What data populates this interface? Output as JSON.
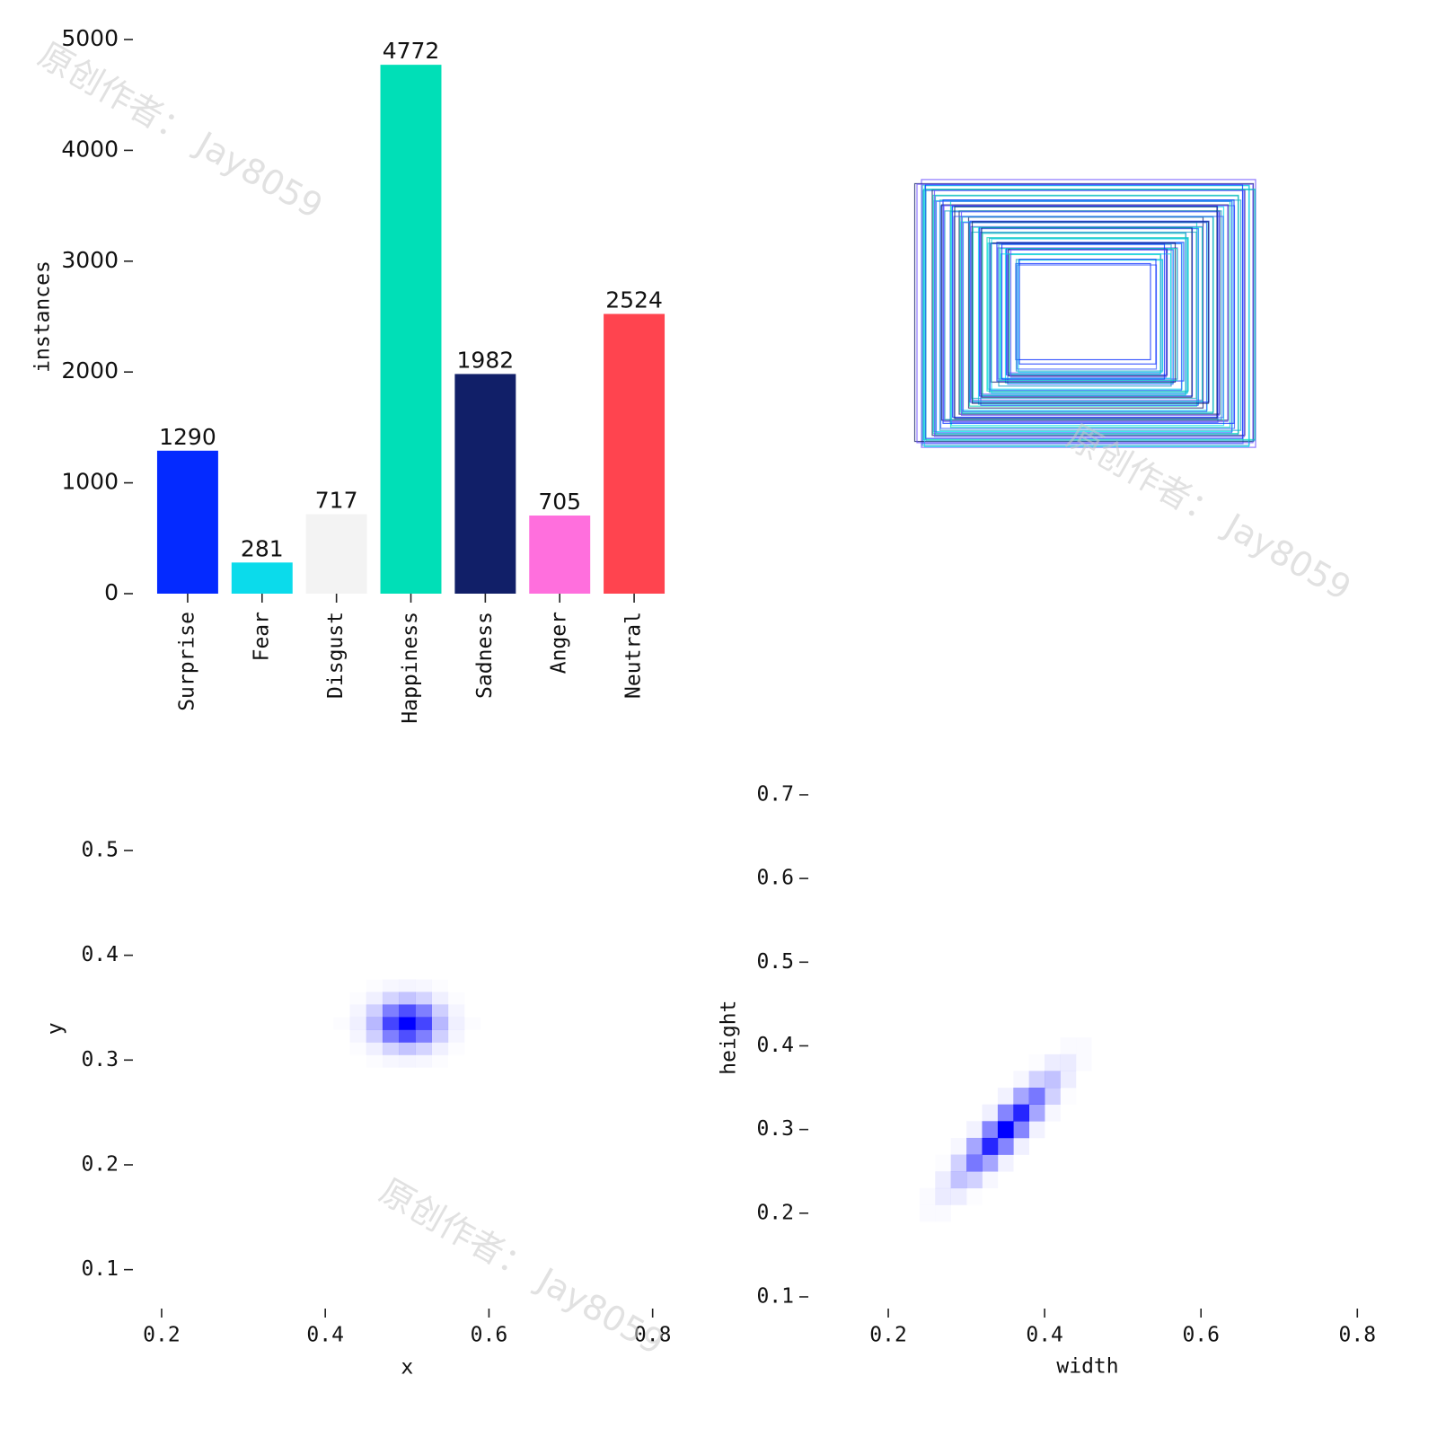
{
  "watermark": "原创作者： Jay8059",
  "chart_data": [
    {
      "type": "bar",
      "ylabel": "instances",
      "categories": [
        "Surprise",
        "Fear",
        "Disgust",
        "Happiness",
        "Sadness",
        "Anger",
        "Neutral"
      ],
      "values": [
        1290,
        281,
        717,
        4772,
        1982,
        705,
        2524
      ],
      "colors": [
        "#042aff",
        "#0bdbeb",
        "#f3f3f3",
        "#00dfb7",
        "#111f68",
        "#ff6fdd",
        "#ff444f"
      ],
      "ylim": [
        0,
        5000
      ],
      "yticks": [
        0,
        1000,
        2000,
        3000,
        4000,
        5000
      ],
      "value_labels_shown": true
    },
    {
      "type": "hist2d",
      "xlabel": "x",
      "ylabel": "y",
      "color": "#0000ff",
      "xlim": [
        0.17,
        0.83
      ],
      "ylim": [
        0.08,
        0.58
      ],
      "xticks": [
        0.2,
        0.4,
        0.6,
        0.8
      ],
      "yticks": [
        0.1,
        0.2,
        0.3,
        0.4,
        0.5
      ],
      "x_bins": [
        0.39,
        0.41,
        0.43,
        0.45,
        0.47,
        0.49,
        0.51,
        0.53,
        0.55,
        0.57,
        0.59,
        0.61
      ],
      "y_bins": [
        0.281,
        0.293,
        0.305,
        0.317,
        0.329,
        0.341,
        0.353,
        0.365,
        0.377
      ],
      "counts": [
        [
          0,
          0,
          0,
          0,
          0,
          0,
          0,
          0,
          0,
          0,
          0
        ],
        [
          0,
          0,
          0,
          1,
          3,
          4,
          3,
          1,
          0,
          0,
          0
        ],
        [
          0,
          0,
          1,
          6,
          17,
          23,
          17,
          6,
          1,
          0,
          0
        ],
        [
          0,
          0,
          4,
          19,
          50,
          69,
          50,
          19,
          4,
          0,
          0
        ],
        [
          0,
          1,
          6,
          28,
          73,
          100,
          73,
          28,
          6,
          1,
          0
        ],
        [
          0,
          0,
          4,
          19,
          50,
          69,
          50,
          19,
          4,
          0,
          0
        ],
        [
          0,
          0,
          1,
          6,
          17,
          23,
          17,
          6,
          1,
          0,
          0
        ],
        [
          0,
          0,
          0,
          1,
          3,
          4,
          3,
          1,
          0,
          0,
          0
        ]
      ]
    },
    {
      "type": "hist2d",
      "xlabel": "width",
      "ylabel": "height",
      "color": "#0000ff",
      "xlim": [
        0.1,
        0.81
      ],
      "ylim": [
        0.08,
        0.74
      ],
      "xticks": [
        0.2,
        0.4,
        0.6,
        0.8
      ],
      "yticks": [
        0.1,
        0.2,
        0.3,
        0.4,
        0.5,
        0.6,
        0.7
      ],
      "x_bins": [
        0.24,
        0.26,
        0.28,
        0.3,
        0.32,
        0.34,
        0.36,
        0.38,
        0.4,
        0.42,
        0.44,
        0.46
      ],
      "y_bins": [
        0.19,
        0.21,
        0.23,
        0.25,
        0.27,
        0.29,
        0.31,
        0.33,
        0.35,
        0.37,
        0.39,
        0.41
      ],
      "counts": [
        [
          2,
          2,
          0,
          0,
          0,
          0,
          0,
          0,
          0,
          0,
          0
        ],
        [
          2,
          8,
          7,
          1,
          0,
          0,
          0,
          0,
          0,
          0,
          0
        ],
        [
          0,
          7,
          24,
          18,
          3,
          0,
          0,
          0,
          0,
          0,
          0
        ],
        [
          0,
          1,
          18,
          53,
          35,
          5,
          0,
          0,
          0,
          0,
          0
        ],
        [
          0,
          0,
          3,
          35,
          85,
          48,
          6,
          0,
          0,
          0,
          0
        ],
        [
          0,
          0,
          0,
          5,
          48,
          100,
          48,
          5,
          0,
          0,
          0
        ],
        [
          0,
          0,
          0,
          0,
          6,
          48,
          85,
          35,
          3,
          0,
          0
        ],
        [
          0,
          0,
          0,
          0,
          0,
          5,
          35,
          53,
          18,
          1,
          0
        ],
        [
          0,
          0,
          0,
          0,
          0,
          0,
          3,
          18,
          24,
          7,
          0
        ],
        [
          0,
          0,
          0,
          0,
          0,
          0,
          0,
          1,
          7,
          8,
          2
        ],
        [
          0,
          0,
          0,
          0,
          0,
          0,
          0,
          0,
          0,
          2,
          2
        ]
      ]
    }
  ]
}
